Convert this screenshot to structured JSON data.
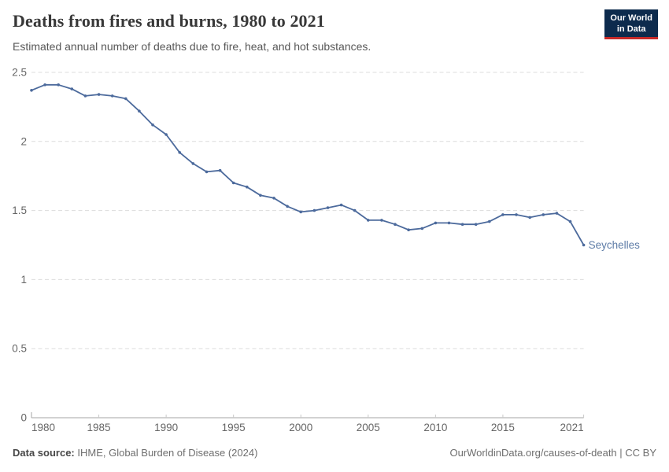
{
  "header": {
    "title": "Deaths from fires and burns, 1980 to 2021",
    "subtitle": "Estimated annual number of deaths due to fire, heat, and hot substances.",
    "logo": {
      "line1": "Our World",
      "line2": "in Data",
      "bg_color": "#0d2b4d",
      "stripe_color": "#c62a29"
    }
  },
  "chart_data": {
    "type": "line",
    "title": "Deaths from fires and burns, 1980 to 2021",
    "xlabel": "",
    "ylabel": "",
    "xlim": [
      1980,
      2021
    ],
    "ylim": [
      0,
      2.5
    ],
    "x_ticks": [
      1980,
      1985,
      1990,
      1995,
      2000,
      2005,
      2010,
      2015,
      2021
    ],
    "y_ticks": [
      0,
      0.5,
      1,
      1.5,
      2,
      2.5
    ],
    "grid": "horizontal-dashed",
    "legend_position": "end-of-line-label",
    "series": [
      {
        "name": "Seychelles",
        "color": "#4c6a9c",
        "label_color": "#5e7ca7",
        "x": [
          1980,
          1981,
          1982,
          1983,
          1984,
          1985,
          1986,
          1987,
          1988,
          1989,
          1990,
          1991,
          1992,
          1993,
          1994,
          1995,
          1996,
          1997,
          1998,
          1999,
          2000,
          2001,
          2002,
          2003,
          2004,
          2005,
          2006,
          2007,
          2008,
          2009,
          2010,
          2011,
          2012,
          2013,
          2014,
          2015,
          2016,
          2017,
          2018,
          2019,
          2020,
          2021
        ],
        "values": [
          2.37,
          2.41,
          2.41,
          2.38,
          2.33,
          2.34,
          2.33,
          2.31,
          2.22,
          2.12,
          2.05,
          1.92,
          1.84,
          1.78,
          1.79,
          1.7,
          1.67,
          1.61,
          1.59,
          1.53,
          1.49,
          1.5,
          1.52,
          1.54,
          1.5,
          1.43,
          1.43,
          1.4,
          1.36,
          1.37,
          1.41,
          1.41,
          1.4,
          1.4,
          1.42,
          1.47,
          1.47,
          1.45,
          1.47,
          1.48,
          1.42,
          1.25
        ]
      }
    ]
  },
  "footer": {
    "source_label": "Data source:",
    "source_value": " IHME, Global Burden of Disease (2024)",
    "link": "OurWorldinData.org/causes-of-death | CC BY"
  }
}
